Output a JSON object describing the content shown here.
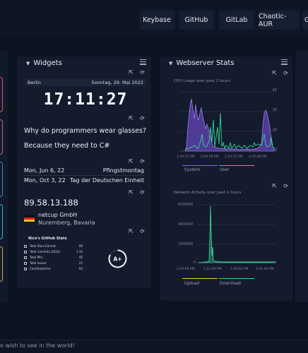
{
  "header": {
    "links": [
      {
        "label": "Keybase"
      },
      {
        "label": "GitHub"
      },
      {
        "label": "GitLab"
      },
      {
        "label": "Chaotic-AUR"
      },
      {
        "label": "G"
      }
    ]
  },
  "widgets": {
    "title": "Widgets",
    "clock": {
      "city": "Berlin",
      "date": "Sonntag, 29. Mai 2022",
      "time": "17:11:27"
    },
    "joke": {
      "setup": "Why do programmers wear glasses?",
      "punchline": "Because they need to C#"
    },
    "holidays": [
      {
        "date": "Mon, Jun 6, 22",
        "name": "Pfingstmontag"
      },
      {
        "date": "Mon, Oct 3, 22",
        "name": "Tag der Deutschen Einheit"
      }
    ],
    "ip": {
      "address": "89.58.13.188",
      "isp": "netcup GmbH",
      "location": "Nuremberg, Bavaria"
    },
    "github_stats": {
      "title": "Nico's GitHub Stats",
      "rows": [
        {
          "label": "Total Stars Earned:",
          "value": "99"
        },
        {
          "label": "Total Commits (2022):",
          "value": "1.2k"
        },
        {
          "label": "Total PRs:",
          "value": "46"
        },
        {
          "label": "Total Issues:",
          "value": "25"
        },
        {
          "label": "Contributed to:",
          "value": "93"
        }
      ],
      "grade": "A+"
    }
  },
  "webserver": {
    "title": "Webserver Stats",
    "cpu_chart": {
      "caption": "CPU Usage over past 1 hours",
      "legend": [
        "System",
        "User"
      ],
      "y_ticks": [
        "40",
        "30",
        "20",
        "10"
      ],
      "x_ticks": [
        "1:30:31 PM",
        "2:00:16 PM",
        "1:54:32 PM",
        "4:47:46 PM"
      ]
    },
    "net_chart": {
      "caption": "Network Activity over past 1 hours",
      "legend": [
        "Upload",
        "Download"
      ],
      "y_ticks": [
        "6000000",
        "4000000",
        "2000000",
        "0"
      ],
      "x_ticks": [
        "2:00:06 PM",
        "1:12:00 PM",
        "1:00:00 PM",
        "1:31:00 PM"
      ]
    }
  },
  "footer": {
    "text": "o wish to see in the world!"
  },
  "colors": {
    "system": "#8b5cf6",
    "user": "#34d399",
    "upload": "#facc15",
    "download": "#34d399"
  }
}
